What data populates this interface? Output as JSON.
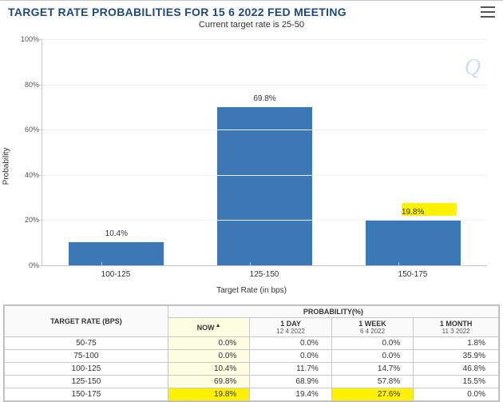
{
  "chart": {
    "title": "TARGET RATE PROBABILITIES FOR 15 6 2022 FED MEETING",
    "subtitle": "Current target rate is 25-50",
    "ylabel": "Probability",
    "xlabel": "Target Rate (in bps)",
    "watermark": "Q",
    "type": "bar",
    "ylim": [
      0,
      100
    ],
    "ytick_step": 20,
    "yticks": [
      "0%",
      "20%",
      "40%",
      "60%",
      "80%",
      "100%"
    ],
    "categories": [
      "100-125",
      "125-150",
      "150-175"
    ],
    "values": [
      10.4,
      69.8,
      19.8
    ],
    "value_labels": [
      "10.4%",
      "69.8%",
      "19.8%"
    ],
    "bar_color": "#3b78b5",
    "background_color": "#ffffff",
    "grid_color": "#eeeeee",
    "axis_color": "#c8c8c8",
    "highlight_index": 2,
    "highlight_color": "#fff200",
    "title_color": "#1f497d",
    "title_fontsize": 14,
    "label_fontsize": 10,
    "bar_width": 0.64
  },
  "table": {
    "header_left": "TARGET RATE (BPS)",
    "header_group": "PROBABILITY(%)",
    "columns": [
      {
        "label": "NOW",
        "sub": ""
      },
      {
        "label": "1 DAY",
        "sub": "12 4 2022"
      },
      {
        "label": "1 WEEK",
        "sub": "6 4 2022"
      },
      {
        "label": "1 MONTH",
        "sub": "11 3 2022"
      }
    ],
    "rows": [
      {
        "rate": "50-75",
        "cells": [
          "0.0%",
          "0.0%",
          "0.0%",
          "1.8%"
        ]
      },
      {
        "rate": "75-100",
        "cells": [
          "0.0%",
          "0.0%",
          "0.0%",
          "35.9%"
        ]
      },
      {
        "rate": "100-125",
        "cells": [
          "10.4%",
          "11.7%",
          "14.7%",
          "46.8%"
        ]
      },
      {
        "rate": "125-150",
        "cells": [
          "69.8%",
          "68.9%",
          "57.8%",
          "15.5%"
        ]
      },
      {
        "rate": "150-175",
        "cells": [
          "19.8%",
          "19.4%",
          "27.6%",
          "0.0%"
        ]
      }
    ],
    "highlight_cells": [
      {
        "row": 4,
        "col": 0
      },
      {
        "row": 4,
        "col": 2
      }
    ],
    "now_col_bg": "#feffe2",
    "highlight_color": "#fff200",
    "border_color": "#c8c8c8"
  }
}
